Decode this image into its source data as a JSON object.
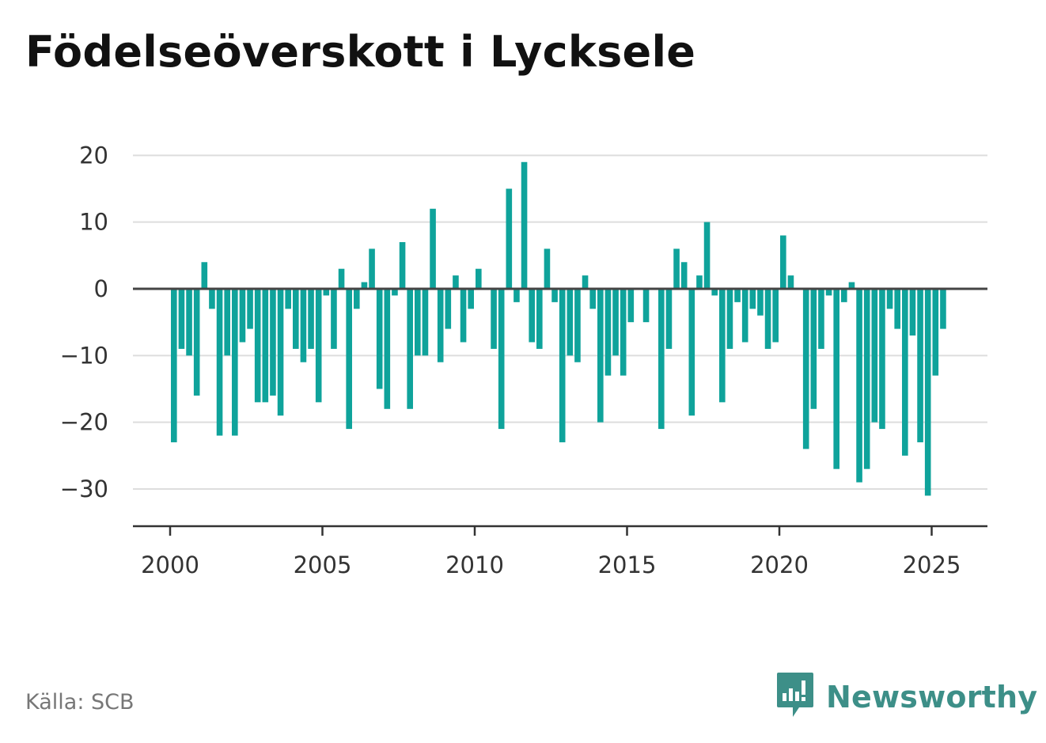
{
  "title": "Födelseöverskott i Lycksele",
  "source": "Källa: SCB",
  "brand": {
    "name": "Newsworthy",
    "icon": "newsworthy-logo-icon",
    "color": "#3d8f88"
  },
  "colors": {
    "bar": "#0fa39b",
    "grid": "#dddddd",
    "zero_line": "#444444",
    "axis": "#333333"
  },
  "chart_data": {
    "type": "bar",
    "title": "Födelseöverskott i Lycksele",
    "xlabel": "",
    "ylabel": "",
    "ylim": [
      -35,
      20
    ],
    "xlim": [
      1999.75,
      2027.75
    ],
    "grid": true,
    "y_ticks": [
      20,
      10,
      0,
      -10,
      -20,
      -30
    ],
    "y_tick_labels": [
      "20",
      "10",
      "0",
      "−10",
      "−20",
      "−30"
    ],
    "x_ticks": [
      2000,
      2005,
      2010,
      2015,
      2020,
      2025
    ],
    "x_tick_labels": [
      "2000",
      "2005",
      "2010",
      "2015",
      "2020",
      "2025"
    ],
    "frequency": "quarterly",
    "start": "2000 Q1",
    "values": [
      -23,
      -9,
      -10,
      -16,
      4,
      -3,
      -22,
      -10,
      -22,
      -8,
      -6,
      -17,
      -17,
      -16,
      -19,
      -3,
      -9,
      -11,
      -9,
      -17,
      -1,
      -9,
      3,
      -21,
      -3,
      1,
      6,
      -15,
      -18,
      -1,
      7,
      -18,
      -10,
      -10,
      12,
      -11,
      -6,
      2,
      -8,
      -3,
      3,
      0,
      -9,
      -21,
      15,
      -2,
      19,
      -8,
      -9,
      6,
      -2,
      -23,
      -10,
      -11,
      2,
      -3,
      -20,
      -13,
      -10,
      -13,
      -5,
      0,
      -5,
      0,
      -21,
      -9,
      6,
      4,
      -19,
      2,
      10,
      -1,
      -17,
      -9,
      -2,
      -8,
      -3,
      -4,
      -9,
      -8,
      8,
      2,
      0,
      -24,
      -18,
      -9,
      -1,
      -27,
      -2,
      1,
      -29,
      -27,
      -20,
      -21,
      -3,
      -6,
      -25,
      -7,
      -23,
      -31,
      -13,
      -6
    ]
  }
}
